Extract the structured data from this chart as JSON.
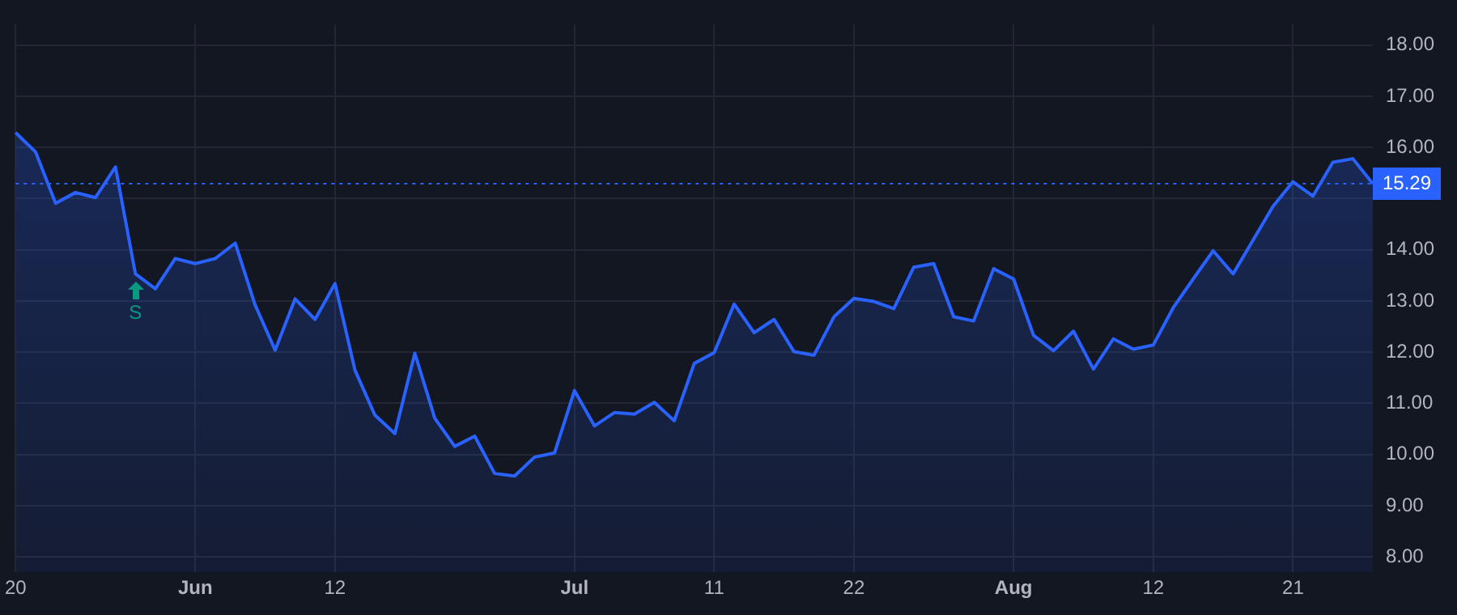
{
  "chart_data": {
    "type": "area",
    "categories": [
      "20",
      null,
      null,
      null,
      null,
      null,
      null,
      null,
      null,
      "Jun",
      null,
      null,
      null,
      null,
      null,
      null,
      "12",
      null,
      null,
      null,
      null,
      null,
      null,
      null,
      null,
      null,
      null,
      null,
      "Jul",
      null,
      null,
      null,
      null,
      null,
      null,
      "11",
      null,
      null,
      null,
      null,
      null,
      null,
      "22",
      null,
      null,
      null,
      null,
      null,
      null,
      null,
      "Aug",
      null,
      null,
      null,
      null,
      null,
      null,
      "12",
      null,
      null,
      null,
      null,
      null,
      null,
      "21",
      null,
      null,
      null,
      null
    ],
    "series": [
      {
        "color": "#2962ff",
        "values": [
          16.29,
          15.91,
          14.91,
          15.12,
          15.02,
          15.62,
          13.53,
          13.24,
          13.83,
          13.73,
          13.83,
          14.13,
          12.92,
          12.04,
          13.04,
          12.64,
          13.34,
          11.65,
          10.77,
          10.41,
          11.98,
          10.71,
          10.16,
          10.36,
          9.63,
          9.58,
          9.95,
          10.03,
          11.25,
          10.56,
          10.82,
          10.79,
          11.02,
          10.66,
          11.78,
          11.99,
          12.94,
          12.38,
          12.64,
          12.01,
          11.94,
          12.69,
          13.05,
          12.99,
          12.85,
          13.66,
          13.73,
          12.69,
          12.61,
          13.63,
          13.43,
          12.33,
          12.03,
          12.41,
          11.67,
          12.26,
          12.06,
          12.14,
          12.87,
          13.43,
          13.98,
          13.53,
          14.19,
          14.85,
          15.33,
          15.05,
          15.71,
          15.78,
          15.29
        ]
      }
    ],
    "ylim": [
      7.7,
      18.4
    ],
    "yticks": [
      {
        "value": 8,
        "label": "8.00"
      },
      {
        "value": 9,
        "label": "9.00"
      },
      {
        "value": 10,
        "label": "10.00"
      },
      {
        "value": 11,
        "label": "11.00"
      },
      {
        "value": 12,
        "label": "12.00"
      },
      {
        "value": 13,
        "label": "13.00"
      },
      {
        "value": 14,
        "label": "14.00"
      },
      {
        "value": 15,
        "label": null
      },
      {
        "value": 16,
        "label": "16.00"
      },
      {
        "value": 17,
        "label": "17.00"
      },
      {
        "value": 18,
        "label": "18.00"
      }
    ],
    "ref_lines": [
      {
        "axis": "y",
        "value": 15.29,
        "label": "15.29",
        "color": "#2962ff",
        "line_style": "dotted"
      }
    ],
    "annotations": [
      "S"
    ],
    "grid": true,
    "legend": false,
    "marker": "none",
    "line_style": "solid"
  }
}
